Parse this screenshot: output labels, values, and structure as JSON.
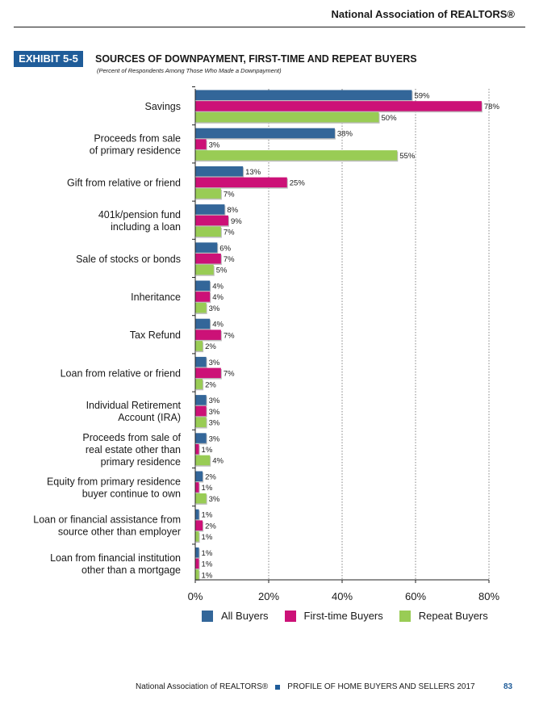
{
  "header": {
    "org": "National Association of REALTORS®"
  },
  "exhibit": {
    "badge": "EXHIBIT 5-5",
    "title": "SOURCES OF DOWNPAYMENT, FIRST-TIME AND REPEAT BUYERS",
    "subtitle": "(Percent of Respondents Among Those Who Made a Downpayment)"
  },
  "footer": {
    "org": "National Association of REALTORS®",
    "report": "PROFILE OF HOME BUYERS AND SELLERS 2017",
    "page": "83"
  },
  "colors": {
    "all": "#336699",
    "first": "#cc1177",
    "repeat": "#99cc55",
    "brand": "#1f5c99"
  },
  "chart_data": {
    "type": "bar",
    "orientation": "horizontal",
    "title": "SOURCES OF DOWNPAYMENT, FIRST-TIME AND REPEAT BUYERS",
    "subtitle": "(Percent of Respondents Among Those Who Made a Downpayment)",
    "xlim": [
      0,
      80
    ],
    "ticks": [
      "0%",
      "20%",
      "40%",
      "60%",
      "80%"
    ],
    "tick_values": [
      0,
      20,
      40,
      60,
      80
    ],
    "legend": "bottom",
    "categories": [
      [
        "Savings"
      ],
      [
        "Proceeds from sale",
        "of primary residence"
      ],
      [
        "Gift from relative or friend"
      ],
      [
        "401k/pension fund",
        "including a loan"
      ],
      [
        "Sale of stocks or bonds"
      ],
      [
        "Inheritance"
      ],
      [
        "Tax Refund"
      ],
      [
        "Loan from relative or friend"
      ],
      [
        "Individual Retirement",
        "Account (IRA)"
      ],
      [
        "Proceeds from sale of",
        "real estate other than",
        "primary residence"
      ],
      [
        "Equity from primary residence",
        "buyer continue to own"
      ],
      [
        "Loan or financial assistance from",
        "source other than employer"
      ],
      [
        "Loan from financial institution",
        "other than a mortgage"
      ]
    ],
    "series": [
      {
        "name": "All Buyers",
        "values": [
          59,
          38,
          13,
          8,
          6,
          4,
          4,
          3,
          3,
          3,
          2,
          1,
          1
        ]
      },
      {
        "name": "First-time Buyers",
        "values": [
          78,
          3,
          25,
          9,
          7,
          4,
          7,
          7,
          3,
          1,
          1,
          2,
          1
        ]
      },
      {
        "name": "Repeat Buyers",
        "values": [
          50,
          55,
          7,
          7,
          5,
          3,
          2,
          2,
          3,
          4,
          3,
          1,
          1
        ]
      }
    ]
  }
}
